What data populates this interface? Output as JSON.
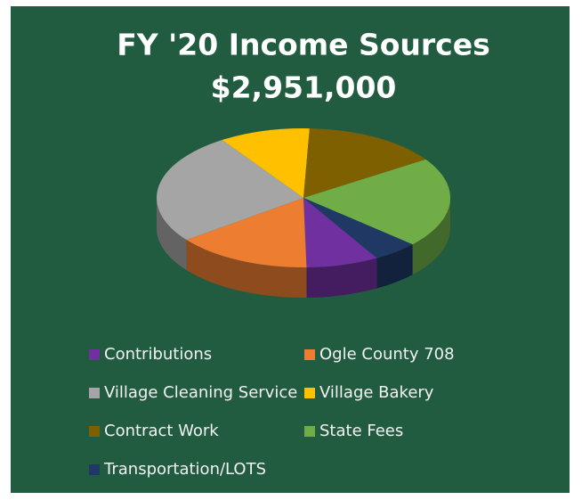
{
  "chart_data": {
    "type": "pie",
    "three_d": true,
    "title": "FY '20 Income Sources",
    "subtitle": "$2,951,000",
    "categories": [
      "Contributions",
      "Ogle County 708",
      "Village Cleaning Service",
      "Village Bakery",
      "Contract Work",
      "State Fees",
      "Transportation/LOTS"
    ],
    "values": [
      8,
      15,
      26,
      10,
      15,
      21,
      5
    ],
    "colors": [
      "#7030a0",
      "#ed7d31",
      "#a5a5a5",
      "#ffc000",
      "#7f6000",
      "#70ad47",
      "#203864"
    ],
    "legend": "bottom"
  }
}
